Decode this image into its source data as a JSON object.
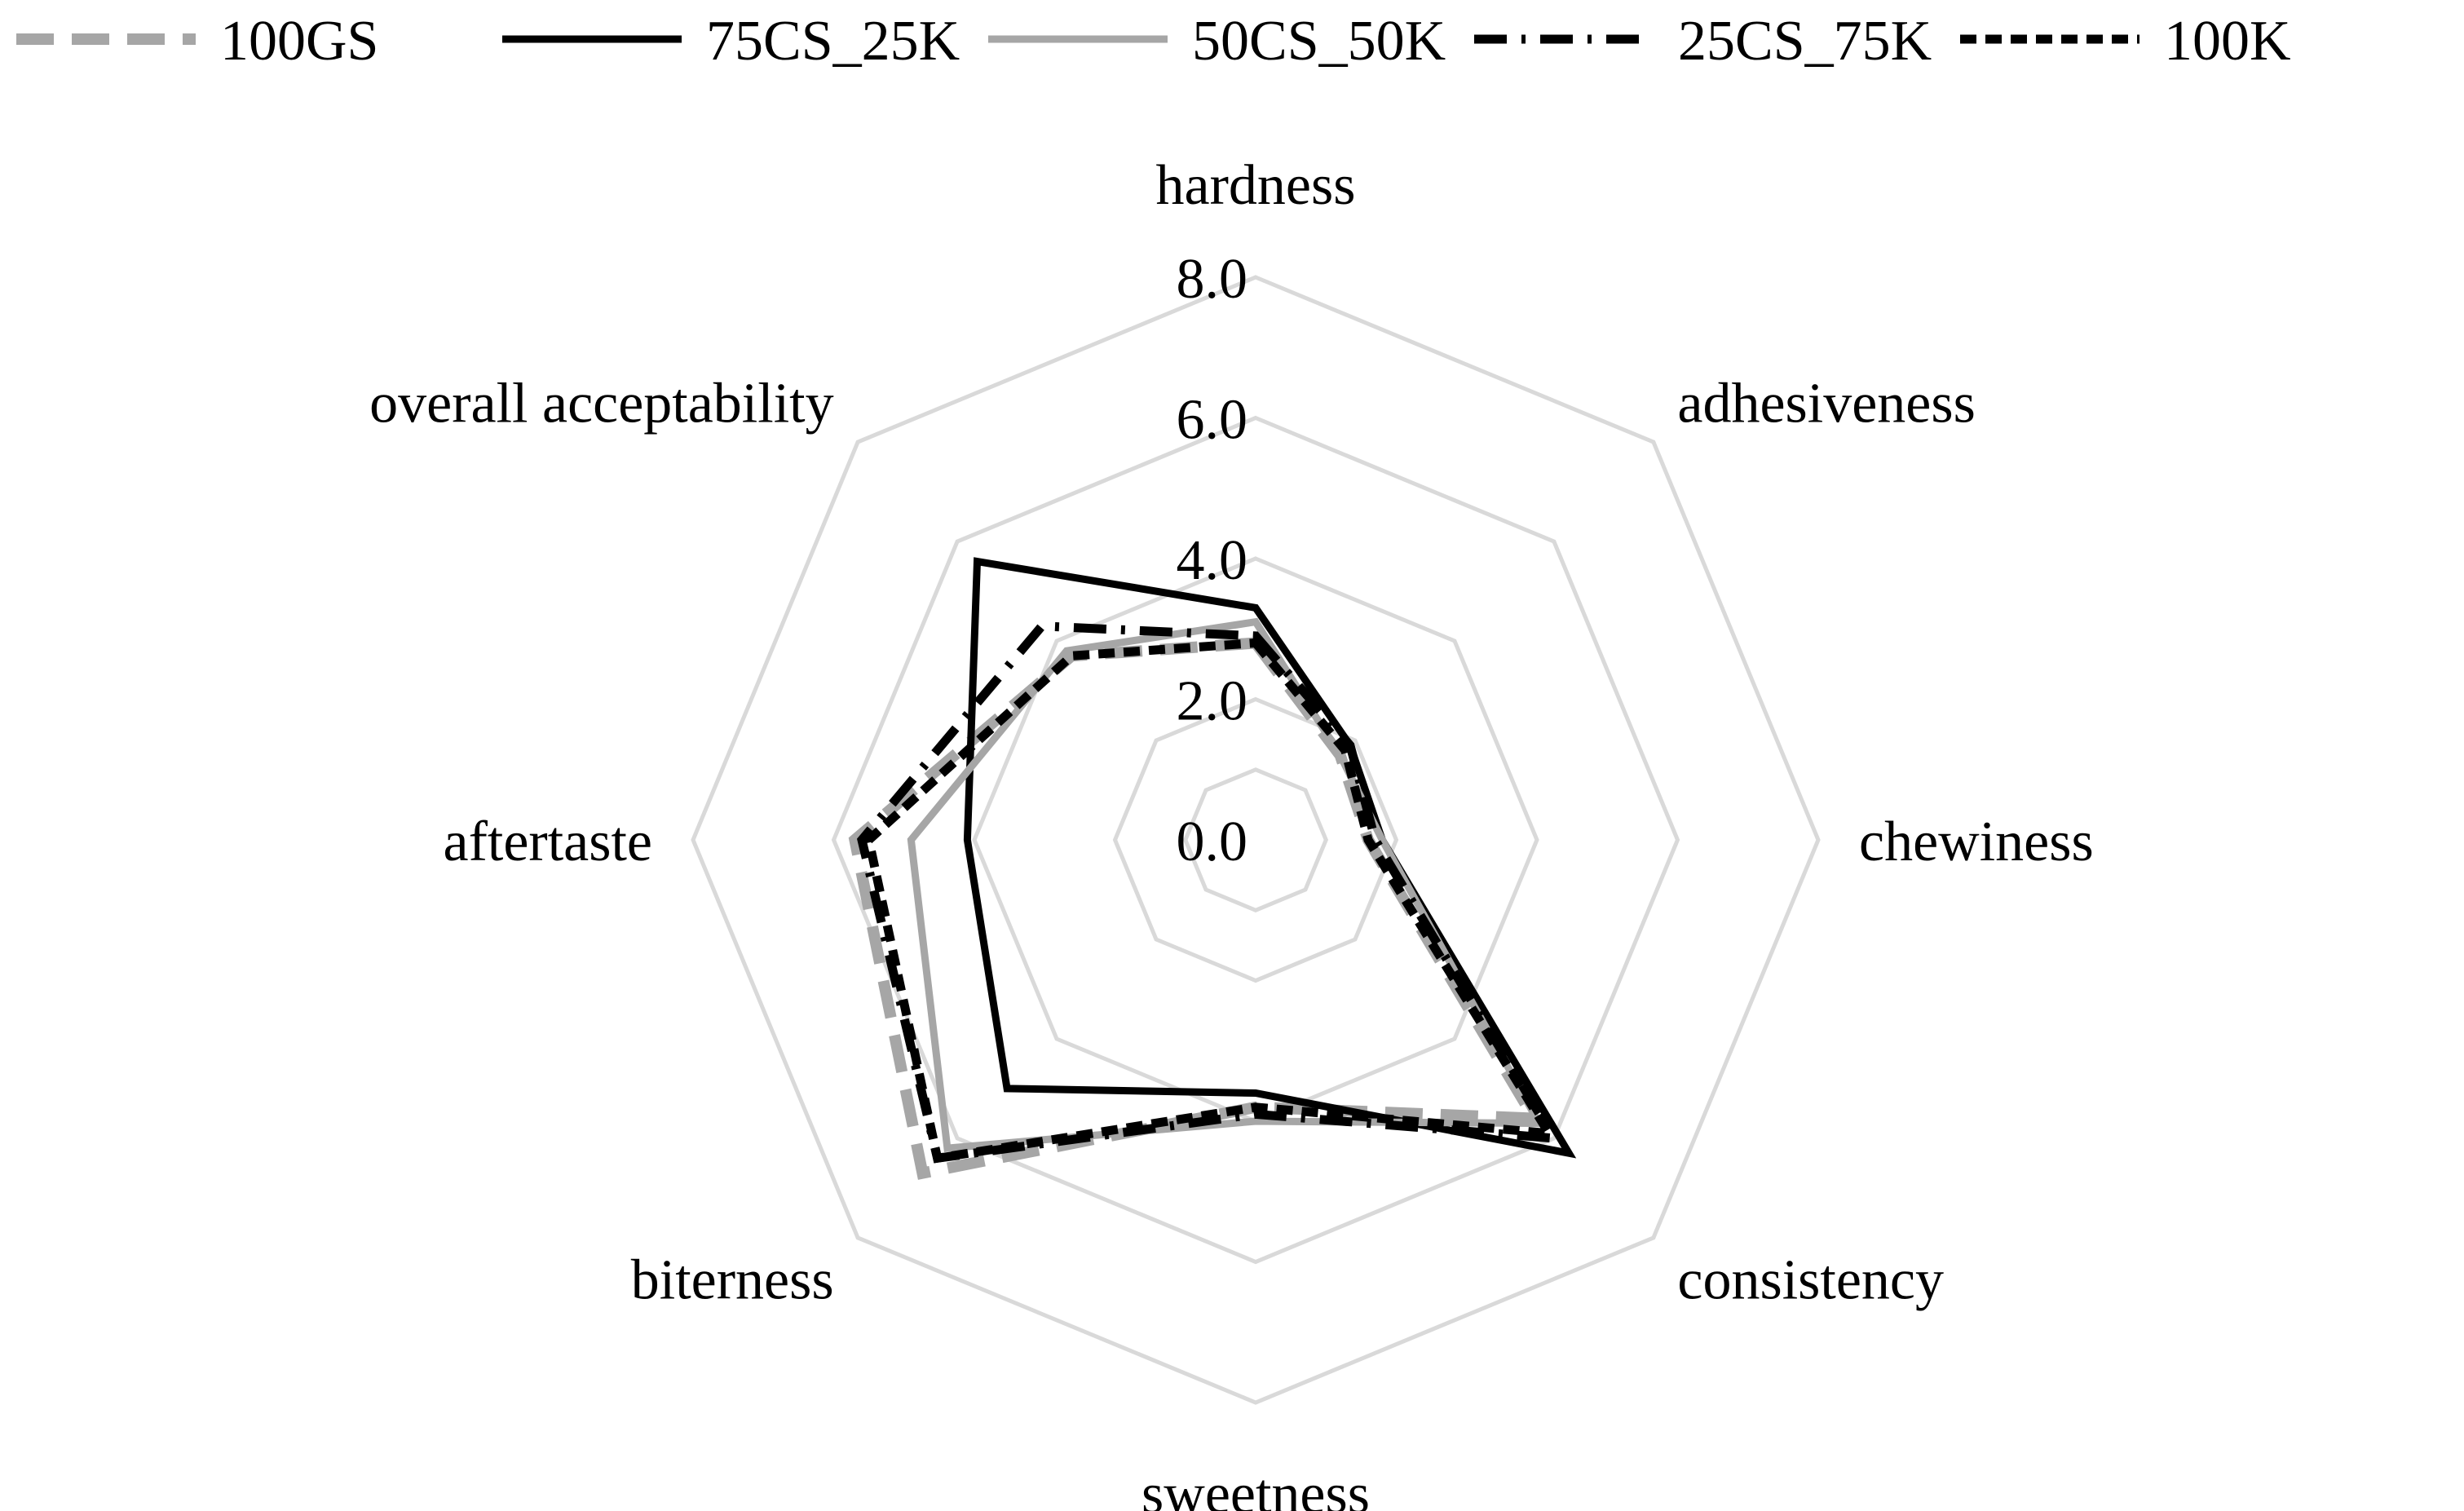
{
  "chart_data": {
    "type": "radar",
    "title": "",
    "axes": [
      "hardness",
      "adhesiveness",
      "chewiness",
      "consistency",
      "sweetness",
      "biterness",
      "aftertaste",
      "overall acceptability"
    ],
    "range": [
      0,
      8
    ],
    "ticks": [
      "0.0",
      "2.0",
      "4.0",
      "6.0",
      "8.0"
    ],
    "tick_values": [
      0,
      2,
      4,
      6,
      8
    ],
    "legend_position": "top",
    "series": [
      {
        "name": "100GS",
        "values": [
          2.8,
          1.7,
          1.6,
          5.6,
          3.8,
          6.7,
          5.7,
          3.7
        ],
        "color": "#a6a6a6",
        "dash": "46 22",
        "width": 14
      },
      {
        "name": "75CS_25K",
        "values": [
          3.3,
          1.9,
          1.8,
          6.3,
          3.6,
          5.0,
          4.1,
          5.6
        ],
        "color": "#000000",
        "dash": "",
        "width": 9
      },
      {
        "name": "50CS_50K",
        "values": [
          3.1,
          1.7,
          1.8,
          5.7,
          4.0,
          6.2,
          4.9,
          3.8
        ],
        "color": "#a6a6a6",
        "dash": "",
        "width": 9
      },
      {
        "name": "25CS_75K",
        "values": [
          2.9,
          1.9,
          1.7,
          6.0,
          3.9,
          6.4,
          5.6,
          4.3
        ],
        "color": "#000000",
        "dash": "40 18 5 18",
        "width": 11
      },
      {
        "name": "100K",
        "values": [
          2.8,
          1.8,
          1.6,
          5.9,
          3.8,
          6.4,
          5.5,
          3.7
        ],
        "color": "#000000",
        "dash": "20 11",
        "width": 11
      }
    ]
  }
}
